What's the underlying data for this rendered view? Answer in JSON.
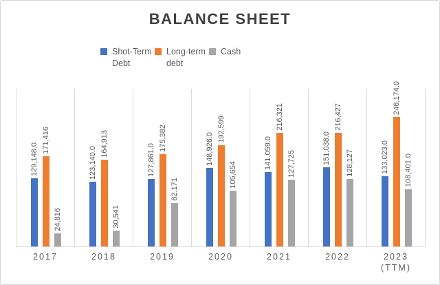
{
  "title": "BALANCE SHEET",
  "legend": {
    "position": "top",
    "items": [
      {
        "label": "Shot-Term Debt",
        "color": "#4472C4"
      },
      {
        "label": "Long-term debt",
        "color": "#ED7D31"
      },
      {
        "label": "Cash",
        "color": "#A5A5A5"
      }
    ]
  },
  "colors": {
    "short_term_debt": "#4472C4",
    "long_term_debt": "#ED7D31",
    "cash": "#A5A5A5",
    "gridline": "#D9D9D9",
    "title_text": "#404040",
    "label_text": "#595959"
  },
  "chart_data": {
    "type": "bar",
    "title": "BALANCE SHEET",
    "xlabel": "",
    "ylabel": "",
    "ylim": [
      0,
      300000
    ],
    "grid": "vertical-category-separators",
    "legend_position": "top-center",
    "categories": [
      "2017",
      "2018",
      "2019",
      "2020",
      "2021",
      "2022",
      "2023\n(TTM)"
    ],
    "series": [
      {
        "name": "Shot-Term Debt",
        "color": "#4472C4",
        "values": [
          129148,
          123140,
          127861,
          148926,
          141059,
          151038,
          133023
        ],
        "labels": [
          "129,148.0",
          "123,140.0",
          "127,861.0",
          "148,926.0",
          "141,059.0",
          "151,038.0",
          "133,023.0"
        ]
      },
      {
        "name": "Long-term debt",
        "color": "#ED7D31",
        "values": [
          171416,
          164913,
          175382,
          192599,
          216321,
          216427,
          246174
        ],
        "labels": [
          "171,416",
          "164,913",
          "175,382",
          "192,599",
          "216,321",
          "216,427",
          "246,174.0"
        ]
      },
      {
        "name": "Cash",
        "color": "#A5A5A5",
        "values": [
          24816,
          30541,
          82171,
          105654,
          127725,
          128127,
          108401
        ],
        "labels": [
          "24,816",
          "30,541",
          "82,171",
          "105,654",
          "127,725",
          "128,127",
          "108,401.0"
        ]
      }
    ]
  }
}
